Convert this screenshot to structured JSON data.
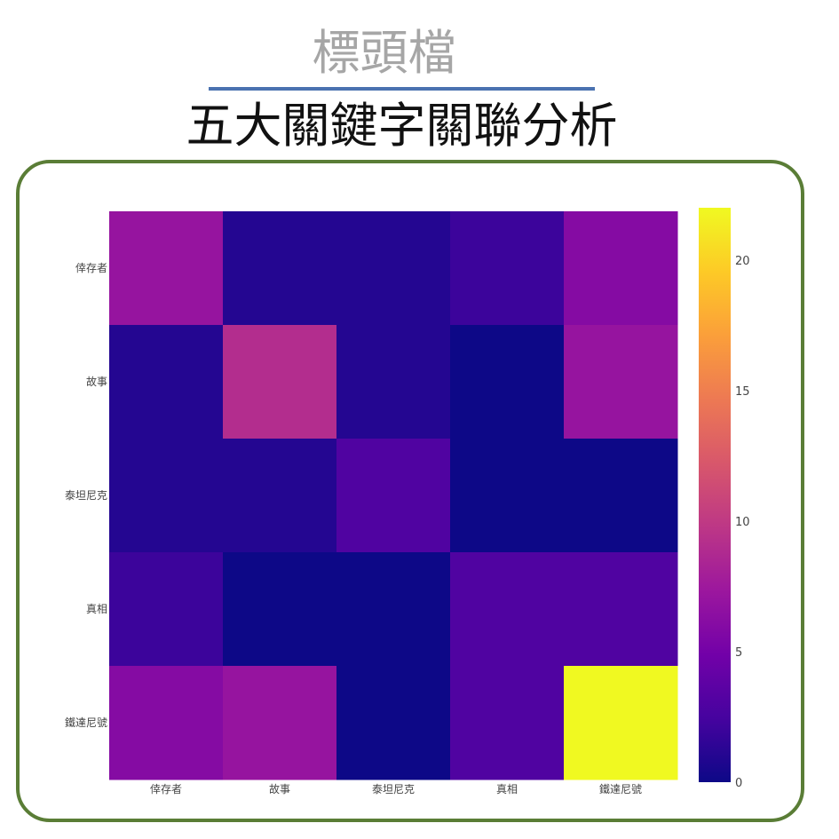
{
  "header": {
    "label": "標頭檔",
    "title": "五大關鍵字關聯分析"
  },
  "colors": {
    "header_rule": "#4a72b0",
    "frame_border": "#5a7d36",
    "colorscale": [
      "#0d0887",
      "#46039f",
      "#7201a8",
      "#9c179e",
      "#bd3786",
      "#d8576b",
      "#ed7953",
      "#fb9f3a",
      "#fdca26",
      "#f0f921"
    ]
  },
  "chart_data": {
    "type": "heatmap",
    "x": [
      "倖存者",
      "故事",
      "泰坦尼克",
      "真相",
      "鐵達尼號"
    ],
    "y": [
      "倖存者",
      "故事",
      "泰坦尼克",
      "真相",
      "鐵達尼號"
    ],
    "z": [
      [
        7,
        1,
        1,
        2,
        6
      ],
      [
        1,
        9,
        1,
        0,
        7
      ],
      [
        1,
        1,
        3,
        0,
        0
      ],
      [
        2,
        0,
        0,
        3,
        3
      ],
      [
        6,
        7,
        0,
        3,
        22
      ]
    ],
    "zmin": 0,
    "zmax": 22,
    "colorbar_ticks": [
      0,
      5,
      10,
      15,
      20
    ]
  }
}
